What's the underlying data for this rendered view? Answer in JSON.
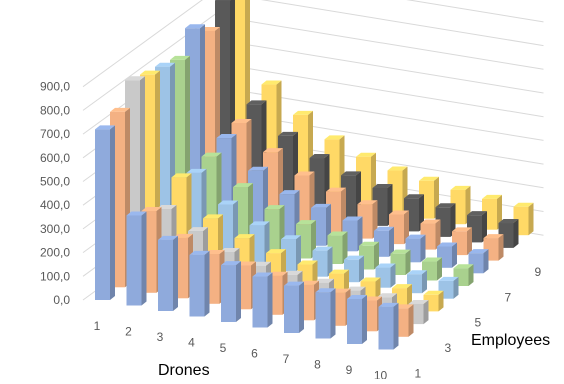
{
  "chart_data": {
    "type": "bar",
    "subtype": "3d-column",
    "title": "",
    "xlabel": "Drones",
    "zlabel": "Employees",
    "ylabel": "",
    "ylim": [
      0,
      900
    ],
    "y_ticks": [
      "0,0",
      "100,0",
      "200,0",
      "300,0",
      "400,0",
      "500,0",
      "600,0",
      "700,0",
      "800,0",
      "900,0"
    ],
    "x_ticks": [
      "1",
      "2",
      "3",
      "4",
      "5",
      "6",
      "7",
      "8",
      "9",
      "10"
    ],
    "z_ticks": [
      "1",
      "3",
      "5",
      "7",
      "9"
    ],
    "grid": true,
    "legend": "none",
    "series": [
      {
        "employees": 1,
        "color": "#8faadc",
        "values": [
          720,
          380,
          300,
          260,
          240,
          215,
          200,
          195,
          190,
          180
        ]
      },
      {
        "employees": 2,
        "color": "#f4b183",
        "values": [
          740,
          345,
          255,
          210,
          185,
          165,
          150,
          140,
          130,
          120
        ]
      },
      {
        "employees": 3,
        "color": "#c9c9c9",
        "values": [
          820,
          300,
          230,
          165,
          130,
          115,
          105,
          95,
          90,
          85
        ]
      },
      {
        "employees": 4,
        "color": "#ffd966",
        "values": [
          790,
          380,
          230,
          170,
          130,
          105,
          90,
          80,
          75,
          70
        ]
      },
      {
        "employees": 5,
        "color": "#9dc3e6",
        "values": [
          770,
          345,
          235,
          170,
          135,
          110,
          95,
          85,
          80,
          75
        ]
      },
      {
        "employees": 6,
        "color": "#a9d18e",
        "values": [
          745,
          360,
          255,
          185,
          145,
          120,
          100,
          90,
          80,
          75
        ]
      },
      {
        "employees": 7,
        "color": "#8ea9db",
        "values": [
          825,
          385,
          270,
          195,
          160,
          130,
          110,
          100,
          90,
          85
        ]
      },
      {
        "employees": 8,
        "color": "#f4b183",
        "values": [
          760,
          395,
          295,
          220,
          175,
          145,
          125,
          110,
          100,
          95
        ]
      },
      {
        "employees": 9,
        "color": "#595959",
        "values": [
          835,
          420,
          310,
          240,
          190,
          160,
          140,
          125,
          115,
          105
        ]
      },
      {
        "employees": 10,
        "color": "#ffd966",
        "values": [
          880,
          450,
          345,
          265,
          215,
          180,
          160,
          145,
          130,
          120
        ]
      }
    ]
  }
}
